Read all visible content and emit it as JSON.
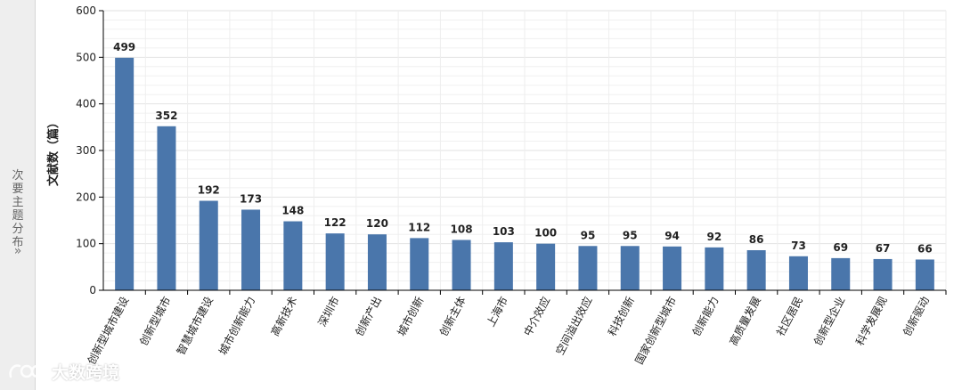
{
  "side_tab": {
    "label": "次要主题分布",
    "arrow": "»"
  },
  "watermark": {
    "text": "大数跨境"
  },
  "chart_data": {
    "type": "bar",
    "title": "",
    "xlabel": "",
    "ylabel": "文献数（篇）",
    "ylim": [
      0,
      600
    ],
    "yticks": [
      0,
      100,
      200,
      300,
      400,
      500,
      600
    ],
    "grid": true,
    "legend": "none",
    "bar_color": "#4a76ab",
    "categories": [
      "创新型城市建设",
      "创新型城市",
      "智慧城市建设",
      "城市创新能力",
      "高新技术",
      "深圳市",
      "创新产出",
      "城市创新",
      "创新主体",
      "上海市",
      "中介效应",
      "空间溢出效应",
      "科技创新",
      "国家创新型城市",
      "创新能力",
      "高质量发展",
      "社区居民",
      "创新型企业",
      "科学发展观",
      "创新驱动"
    ],
    "values": [
      499,
      352,
      192,
      173,
      148,
      122,
      120,
      112,
      108,
      103,
      100,
      95,
      95,
      94,
      92,
      86,
      73,
      69,
      67,
      66
    ]
  }
}
